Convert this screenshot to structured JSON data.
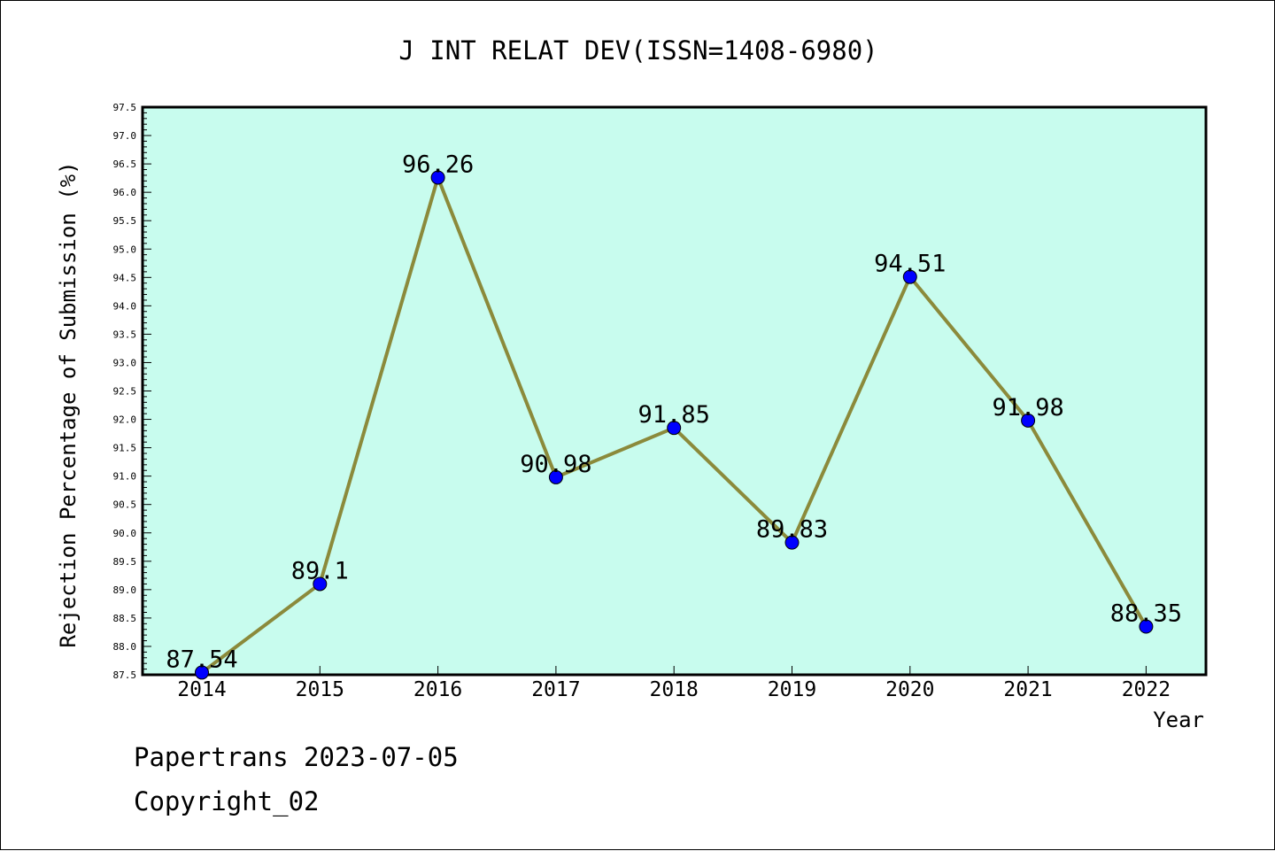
{
  "title": "J INT RELAT DEV(ISSN=1408-6980)",
  "footer": {
    "line1": "Papertrans 2023-07-05",
    "line2": "Copyright_02"
  },
  "colors": {
    "plot_bg": "#c8fcee",
    "line": "#8b8a3b",
    "marker": "#0000ff"
  },
  "chart_data": {
    "type": "line",
    "title": "J INT RELAT DEV(ISSN=1408-6980)",
    "xlabel": "Year",
    "ylabel": "Rejection Percentage of Submission (%)",
    "categories": [
      "2014",
      "2015",
      "2016",
      "2017",
      "2018",
      "2019",
      "2020",
      "2021",
      "2022"
    ],
    "values": [
      87.54,
      89.1,
      96.26,
      90.98,
      91.85,
      89.83,
      94.51,
      91.98,
      88.35
    ],
    "data_labels": [
      "87.54",
      "89.1",
      "96.26",
      "90.98",
      "91.85",
      "89.83",
      "94.51",
      "91.98",
      "88.35"
    ],
    "ylim": [
      87.5,
      97.5
    ],
    "yticks": [
      "87.5",
      "88.0",
      "88.5",
      "89.0",
      "89.5",
      "90.0",
      "90.5",
      "91.0",
      "91.5",
      "92.0",
      "92.5",
      "93.0",
      "93.5",
      "94.0",
      "94.5",
      "95.0",
      "95.5",
      "96.0",
      "96.5",
      "97.0",
      "97.5"
    ],
    "grid": false,
    "legend": "none"
  }
}
